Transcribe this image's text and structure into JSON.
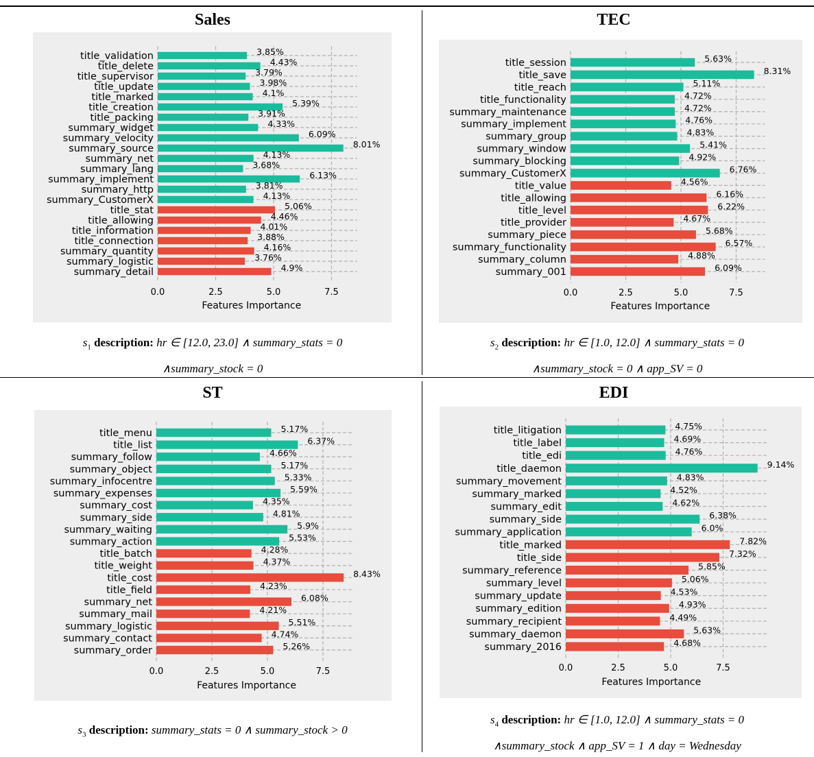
{
  "colors": {
    "green": "#1abc9c",
    "red": "#e74c3c",
    "plot_bg": "#eeeeee",
    "grid": "#b0b0b0"
  },
  "xlabel": "Features Importance",
  "xticks": [
    "0.0",
    "2.5",
    "5.0",
    "7.5"
  ],
  "chart_data": [
    {
      "type": "bar",
      "orientation": "horizontal",
      "title": "Sales",
      "xlabel": "Features Importance",
      "xlim": [
        0,
        8.6
      ],
      "xticks": [
        0.0,
        2.5,
        5.0,
        7.5
      ],
      "grid": true,
      "categories": [
        "title_validation",
        "title_delete",
        "title_supervisor",
        "title_update",
        "title_marked",
        "title_creation",
        "title_packing",
        "summary_widget",
        "summary_velocity",
        "summary_source",
        "summary_net",
        "summary_lang",
        "summary_implement",
        "summary_http",
        "summary_CustomerX",
        "title_stat",
        "title_allowing",
        "title_information",
        "title_connection",
        "summary_quantity",
        "summary_logistic",
        "summary_detail"
      ],
      "values": [
        3.85,
        4.43,
        3.79,
        3.98,
        4.1,
        5.39,
        3.91,
        4.33,
        6.09,
        8.01,
        4.13,
        3.68,
        6.13,
        3.81,
        4.13,
        5.06,
        4.46,
        4.01,
        3.88,
        4.16,
        3.76,
        4.9
      ],
      "labels": [
        "3.85%",
        "4.43%",
        "3.79%",
        "3.98%",
        "4.1%",
        "5.39%",
        "3.91%",
        "4.33%",
        "6.09%",
        "8.01%",
        "4.13%",
        "3.68%",
        "6.13%",
        "3.81%",
        "4.13%",
        "5.06%",
        "4.46%",
        "4.01%",
        "3.88%",
        "4.16%",
        "3.76%",
        "4.9%"
      ],
      "colors": [
        "green",
        "green",
        "green",
        "green",
        "green",
        "green",
        "green",
        "green",
        "green",
        "green",
        "green",
        "green",
        "green",
        "green",
        "green",
        "red",
        "red",
        "red",
        "red",
        "red",
        "red",
        "red"
      ]
    },
    {
      "type": "bar",
      "orientation": "horizontal",
      "title": "TEC",
      "xlabel": "Features Importance",
      "xlim": [
        0,
        8.8
      ],
      "xticks": [
        0.0,
        2.5,
        5.0,
        7.5
      ],
      "grid": true,
      "categories": [
        "title_session",
        "title_save",
        "title_reach",
        "title_functionality",
        "summary_maintenance",
        "summary_implement",
        "summary_group",
        "summary_window",
        "summary_blocking",
        "summary_CustomerX",
        "title_value",
        "title_allowing",
        "title_level",
        "title_provider",
        "summary_piece",
        "summary_functionality",
        "summary_column",
        "summary_001"
      ],
      "values": [
        5.63,
        8.31,
        5.11,
        4.72,
        4.72,
        4.76,
        4.83,
        5.41,
        4.92,
        6.76,
        4.56,
        6.16,
        6.22,
        4.67,
        5.68,
        6.57,
        4.88,
        6.09
      ],
      "labels": [
        "5.63%",
        "8.31%",
        "5.11%",
        "4.72%",
        "4.72%",
        "4.76%",
        "4.83%",
        "5.41%",
        "4.92%",
        "6.76%",
        "4.56%",
        "6.16%",
        "6.22%",
        "4.67%",
        "5.68%",
        "6.57%",
        "4.88%",
        "6.09%"
      ],
      "colors": [
        "green",
        "green",
        "green",
        "green",
        "green",
        "green",
        "green",
        "green",
        "green",
        "green",
        "red",
        "red",
        "red",
        "red",
        "red",
        "red",
        "red",
        "red"
      ]
    },
    {
      "type": "bar",
      "orientation": "horizontal",
      "title": "ST",
      "xlabel": "Features Importance",
      "xlim": [
        0,
        8.9
      ],
      "xticks": [
        0.0,
        2.5,
        5.0,
        7.5
      ],
      "grid": true,
      "categories": [
        "title_menu",
        "title_list",
        "summary_follow",
        "summary_object",
        "summary_infocentre",
        "summary_expenses",
        "summary_cost",
        "summary_side",
        "summary_waiting",
        "summary_action",
        "title_batch",
        "title_weight",
        "title_cost",
        "title_field",
        "summary_net",
        "summary_mail",
        "summary_logistic",
        "summary_contact",
        "summary_order"
      ],
      "values": [
        5.17,
        6.37,
        4.66,
        5.17,
        5.33,
        5.59,
        4.35,
        4.81,
        5.9,
        5.53,
        4.28,
        4.37,
        8.43,
        4.23,
        6.08,
        4.21,
        5.51,
        4.74,
        5.26
      ],
      "labels": [
        "5.17%",
        "6.37%",
        "4.66%",
        "5.17%",
        "5.33%",
        "5.59%",
        "4.35%",
        "4.81%",
        "5.9%",
        "5.53%",
        "4.28%",
        "4.37%",
        "8.43%",
        "4.23%",
        "6.08%",
        "4.21%",
        "5.51%",
        "4.74%",
        "5.26%"
      ],
      "colors": [
        "green",
        "green",
        "green",
        "green",
        "green",
        "green",
        "green",
        "green",
        "green",
        "green",
        "red",
        "red",
        "red",
        "red",
        "red",
        "red",
        "red",
        "red",
        "red"
      ]
    },
    {
      "type": "bar",
      "orientation": "horizontal",
      "title": "EDI",
      "xlabel": "Features Importance",
      "xlim": [
        0,
        9.6
      ],
      "xticks": [
        0.0,
        2.5,
        5.0,
        7.5
      ],
      "grid": true,
      "categories": [
        "title_litigation",
        "title_label",
        "title_edi",
        "title_daemon",
        "summary_movement",
        "summary_marked",
        "summary_edit",
        "summary_side",
        "summary_application",
        "title_marked",
        "title_side",
        "summary_reference",
        "summary_level",
        "summary_update",
        "summary_edition",
        "summary_recipient",
        "summary_daemon",
        "summary_2016"
      ],
      "values": [
        4.75,
        4.69,
        4.76,
        9.14,
        4.83,
        4.52,
        4.62,
        6.38,
        6.0,
        7.82,
        7.32,
        5.85,
        5.06,
        4.53,
        4.93,
        4.49,
        5.63,
        4.68
      ],
      "labels": [
        "4.75%",
        "4.69%",
        "4.76%",
        "9.14%",
        "4.83%",
        "4.52%",
        "4.62%",
        "6.38%",
        "6.0%",
        "7.82%",
        "7.32%",
        "5.85%",
        "5.06%",
        "4.53%",
        "4.93%",
        "4.49%",
        "5.63%",
        "4.68%"
      ],
      "colors": [
        "green",
        "green",
        "green",
        "green",
        "green",
        "green",
        "green",
        "green",
        "green",
        "red",
        "red",
        "red",
        "red",
        "red",
        "red",
        "red",
        "red",
        "red"
      ]
    }
  ],
  "captions": {
    "s1": {
      "sub": "s",
      "idx": "1",
      "label": "description:",
      "line1": "hr ∈ [12.0, 23.0] ∧ summary_stats = 0",
      "line2": "∧summary_stock = 0"
    },
    "s2": {
      "sub": "s",
      "idx": "2",
      "label": "description:",
      "line1": "hr ∈ [1.0, 12.0] ∧ summary_stats = 0",
      "line2": "∧summary_stock = 0 ∧ app_SV = 0"
    },
    "s3": {
      "sub": "s",
      "idx": "3",
      "label": "description:",
      "line1": "summary_stats = 0 ∧ summary_stock > 0"
    },
    "s4": {
      "sub": "s",
      "idx": "4",
      "label": "description:",
      "line1": "hr ∈ [1.0, 12.0] ∧ summary_stats = 0",
      "line2": "∧summary_stock ∧ app_SV = 1 ∧ day = Wednesday"
    }
  }
}
